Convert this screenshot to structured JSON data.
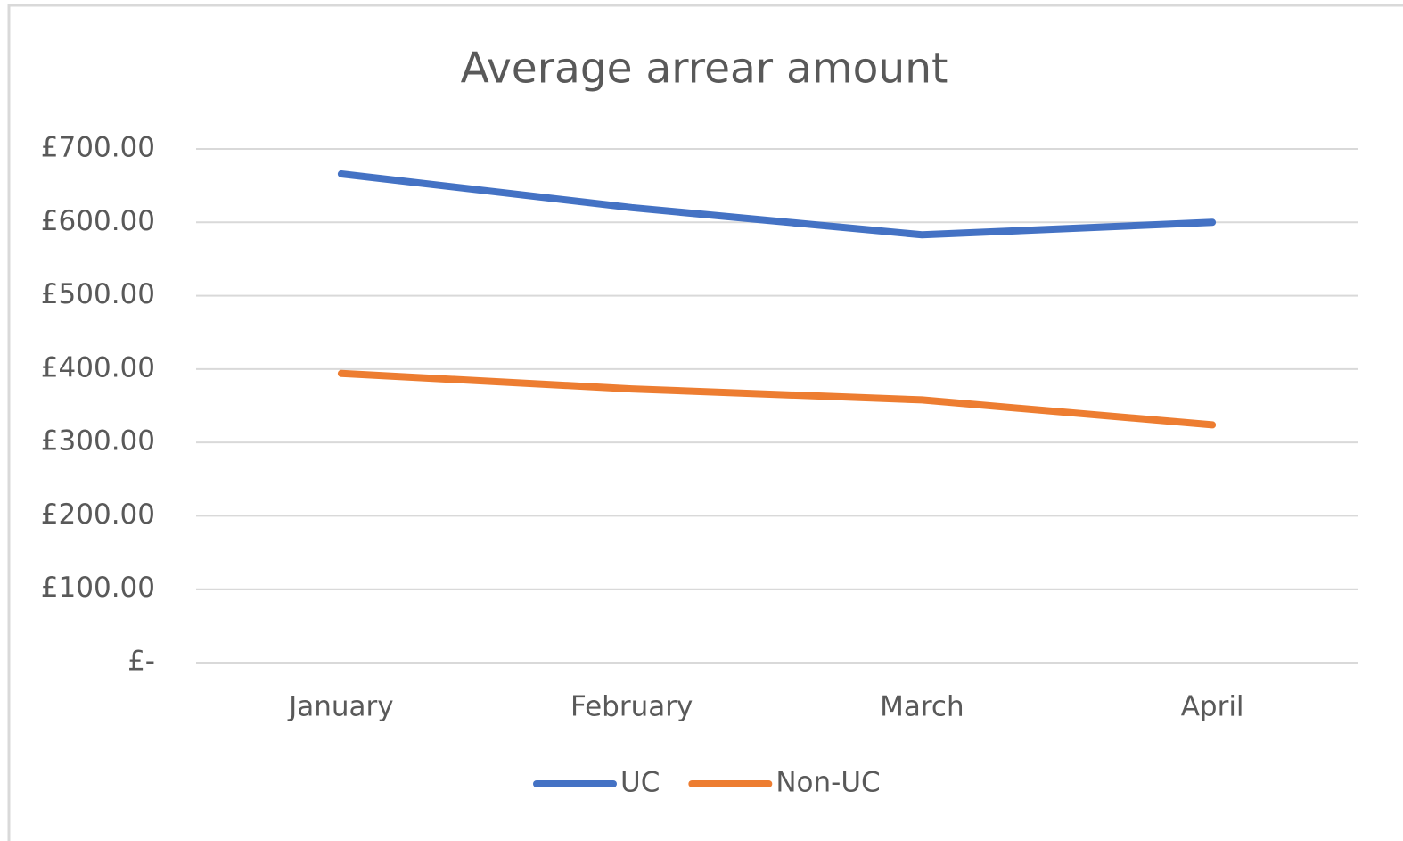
{
  "chart_data": {
    "type": "line",
    "title": "Average arrear amount",
    "categories": [
      "January",
      "February",
      "March",
      "April"
    ],
    "series": [
      {
        "name": "UC",
        "color": "#4472c4",
        "values": [
          666,
          620,
          583,
          600
        ]
      },
      {
        "name": "Non-UC",
        "color": "#ed7d31",
        "values": [
          394,
          373,
          358,
          324
        ]
      }
    ],
    "ylim": [
      0,
      700
    ],
    "yticks": [
      {
        "value": 0,
        "label": "£-"
      },
      {
        "value": 100,
        "label": "£100.00"
      },
      {
        "value": 200,
        "label": "£200.00"
      },
      {
        "value": 300,
        "label": "£300.00"
      },
      {
        "value": 400,
        "label": "£400.00"
      },
      {
        "value": 500,
        "label": "£500.00"
      },
      {
        "value": 600,
        "label": "£600.00"
      },
      {
        "value": 700,
        "label": "£700.00"
      }
    ],
    "grid": true,
    "legend": "bottom"
  }
}
